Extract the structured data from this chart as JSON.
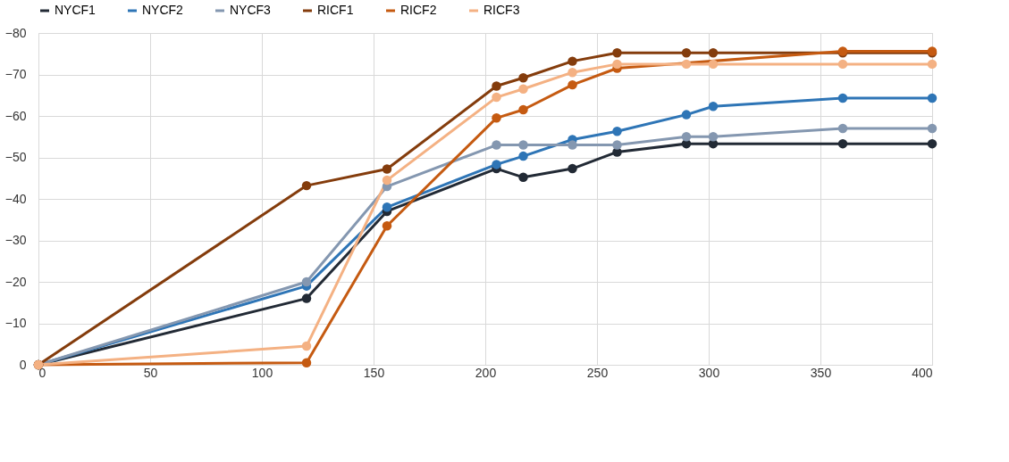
{
  "chart_data": {
    "type": "line",
    "xlim": [
      0,
      400
    ],
    "xticks": [
      0,
      50,
      100,
      150,
      200,
      250,
      300,
      350,
      400
    ],
    "ylim": [
      0,
      -80
    ],
    "yticks": [
      0,
      -10,
      -20,
      -30,
      -40,
      -50,
      -60,
      -70,
      -80
    ],
    "grid": true,
    "legend": "top",
    "marker": "circle",
    "line_style": "solid",
    "series": [
      {
        "name": "NYCF1",
        "color": "#222a35",
        "x": [
          0,
          120,
          156,
          205,
          217,
          239,
          259,
          290,
          302,
          360,
          400
        ],
        "values": [
          0,
          -16,
          -37,
          -47.3,
          -45.2,
          -47.3,
          -51.3,
          -53.3,
          -53.3,
          -53.3,
          -53.3
        ]
      },
      {
        "name": "NYCF2",
        "color": "#2e75b6",
        "x": [
          0,
          120,
          156,
          205,
          217,
          239,
          259,
          290,
          302,
          360,
          400
        ],
        "values": [
          0,
          -19,
          -38,
          -48.3,
          -50.3,
          -54.3,
          -56.3,
          -60.3,
          -62.3,
          -64.3,
          -64.3
        ]
      },
      {
        "name": "NYCF3",
        "color": "#8497b0",
        "x": [
          0,
          120,
          156,
          205,
          217,
          239,
          259,
          290,
          302,
          360,
          400
        ],
        "values": [
          0,
          -20,
          -43,
          -53,
          -53,
          -53,
          -53,
          -55,
          -55,
          -57,
          -57
        ]
      },
      {
        "name": "RICF1",
        "color": "#843c0c",
        "x": [
          0,
          120,
          156,
          205,
          217,
          239,
          259,
          290,
          302,
          360,
          400
        ],
        "values": [
          0,
          -43.2,
          -47.2,
          -67.2,
          -69.2,
          -73.2,
          -75.2,
          -75.2,
          -75.2,
          -75.2,
          -75.2
        ]
      },
      {
        "name": "RICF2",
        "color": "#c55a11",
        "x": [
          0,
          120,
          156,
          205,
          217,
          239,
          259,
          360,
          400
        ],
        "values": [
          0,
          -0.5,
          -33.5,
          -59.5,
          -61.5,
          -67.5,
          -71.5,
          -75.6,
          -75.6
        ]
      },
      {
        "name": "RICF3",
        "color": "#f4b183",
        "x": [
          0,
          120,
          156,
          205,
          217,
          239,
          259,
          290,
          302,
          360,
          400
        ],
        "values": [
          0,
          -4.5,
          -44.5,
          -64.5,
          -66.5,
          -70.5,
          -72.5,
          -72.5,
          -72.5,
          -72.5,
          -72.5
        ]
      }
    ]
  }
}
